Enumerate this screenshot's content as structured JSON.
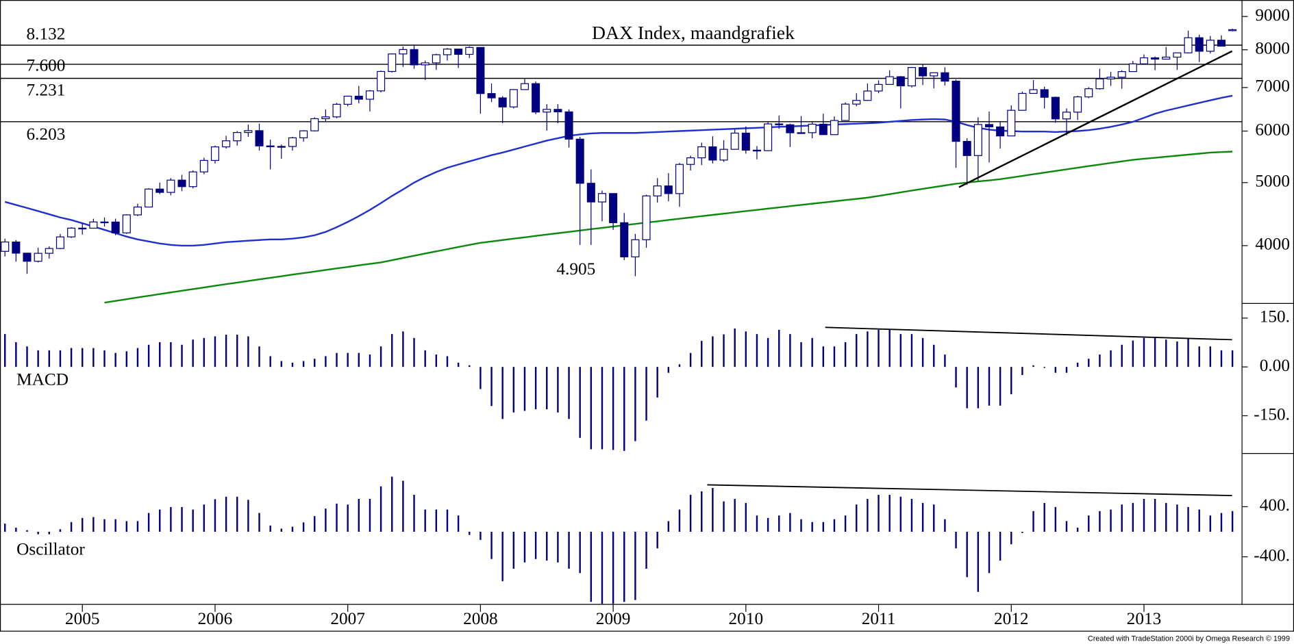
{
  "chart_data": [
    {
      "type": "candlestick",
      "title": "DAX Index, maandgrafiek",
      "categories": [
        null,
        null,
        null,
        null,
        null,
        null,
        null,
        "2005",
        null,
        null,
        null,
        null,
        null,
        null,
        null,
        null,
        null,
        null,
        null,
        "2006",
        null,
        null,
        null,
        null,
        null,
        null,
        null,
        null,
        null,
        null,
        null,
        "2007",
        null,
        null,
        null,
        null,
        null,
        null,
        null,
        null,
        null,
        null,
        null,
        "2008",
        null,
        null,
        null,
        null,
        null,
        null,
        null,
        null,
        null,
        null,
        null,
        "2009",
        null,
        null,
        null,
        null,
        null,
        null,
        null,
        null,
        null,
        null,
        null,
        "2010",
        null,
        null,
        null,
        null,
        null,
        null,
        null,
        null,
        null,
        null,
        null,
        "2011",
        null,
        null,
        null,
        null,
        null,
        null,
        null,
        null,
        null,
        null,
        null,
        "2012",
        null,
        null,
        null,
        null,
        null,
        null,
        null,
        null,
        null,
        null,
        null,
        "2013",
        null,
        null,
        null,
        null,
        null,
        null,
        null,
        null
      ],
      "open": [
        3920,
        4052,
        3895,
        3785,
        3893,
        3960,
        4126,
        4256,
        4255,
        4350,
        4349,
        4185,
        4460,
        4586,
        4887,
        4830,
        5044,
        4929,
        5193,
        5408,
        5674,
        5797,
        5970,
        6009,
        5693,
        5683,
        5682,
        5859,
        6005,
        6269,
        6309,
        6597,
        6789,
        6716,
        6917,
        7409,
        7883,
        8007,
        7584,
        7638,
        7862,
        8020,
        7871,
        8067,
        6852,
        6748,
        6535,
        6949,
        7097,
        6418,
        6479,
        6422,
        5831,
        4988,
        4669,
        4810,
        4338,
        3844,
        4085,
        4770,
        4941,
        4809,
        5332,
        5458,
        5675,
        5415,
        5625,
        5957,
        5608,
        5598,
        6154,
        6136,
        5964,
        5966,
        6148,
        5925,
        6229,
        6601,
        6688,
        6914,
        7077,
        7273,
        7041,
        7514,
        7294,
        7376,
        7159,
        5785,
        5502,
        6141,
        6089,
        5898,
        6458,
        6856,
        6947,
        6762,
        6264,
        6416,
        6772,
        6970,
        7216,
        7260,
        7406,
        7612,
        7776,
        7741,
        7795,
        7914,
        8349,
        7959,
        8276,
        8560
      ],
      "high": [
        4100,
        4080,
        3900,
        3970,
        3990,
        4170,
        4270,
        4330,
        4400,
        4420,
        4400,
        4470,
        4640,
        4900,
        5000,
        5080,
        5140,
        5220,
        5460,
        5700,
        5900,
        6000,
        6140,
        6160,
        5820,
        5720,
        5880,
        6020,
        6300,
        6480,
        6630,
        6800,
        7040,
        6940,
        7430,
        7900,
        8090,
        8150,
        7700,
        7890,
        8050,
        8030,
        8100,
        8070,
        7100,
        6790,
        6960,
        7230,
        7150,
        6600,
        6600,
        6480,
        5880,
        5240,
        4860,
        4810,
        4490,
        4170,
        4790,
        5080,
        5170,
        5360,
        5500,
        5760,
        5890,
        5810,
        6030,
        6100,
        5690,
        6190,
        6340,
        6160,
        6330,
        6200,
        6380,
        6320,
        6640,
        6860,
        7100,
        7180,
        7440,
        7290,
        7530,
        7600,
        7360,
        7520,
        7200,
        5850,
        6300,
        6430,
        6210,
        6570,
        6900,
        7190,
        7020,
        6780,
        6500,
        6800,
        7010,
        7480,
        7400,
        7440,
        7690,
        7870,
        7810,
        8080,
        7920,
        8560,
        8440,
        8400,
        8420,
        8620
      ],
      "low": [
        3850,
        3780,
        3620,
        3770,
        3820,
        3950,
        4110,
        4160,
        4250,
        4280,
        4150,
        4170,
        4440,
        4580,
        4800,
        4780,
        4850,
        4900,
        5150,
        5350,
        5640,
        5700,
        5880,
        5600,
        5240,
        5440,
        5600,
        5780,
        5990,
        6200,
        6280,
        6550,
        6620,
        6430,
        6880,
        7380,
        7530,
        7480,
        7190,
        7450,
        7700,
        7500,
        7770,
        6380,
        6650,
        6170,
        6500,
        6950,
        6370,
        6010,
        6170,
        5660,
        4010,
        4010,
        4360,
        4230,
        3800,
        3590,
        3970,
        4660,
        4680,
        4590,
        5220,
        5320,
        5350,
        5380,
        5620,
        5540,
        5430,
        5590,
        6050,
        5670,
        5960,
        5850,
        5920,
        5920,
        6220,
        6550,
        6680,
        6860,
        7070,
        6500,
        7000,
        7060,
        6980,
        7050,
        5270,
        4960,
        5030,
        5370,
        5640,
        5900,
        6450,
        6850,
        6500,
        6180,
        5910,
        6240,
        6740,
        6950,
        7040,
        6970,
        7400,
        7600,
        7440,
        7730,
        7450,
        7900,
        7660,
        7900,
        8100,
        8540
      ],
      "close": [
        4052,
        3895,
        3785,
        3893,
        3960,
        4126,
        4256,
        4255,
        4350,
        4349,
        4185,
        4460,
        4586,
        4887,
        4830,
        5044,
        4929,
        5193,
        5408,
        5674,
        5797,
        5970,
        6009,
        5693,
        5683,
        5682,
        5859,
        6005,
        6269,
        6309,
        6597,
        6789,
        6716,
        6917,
        7409,
        7883,
        8007,
        7584,
        7638,
        7862,
        8020,
        7871,
        8067,
        6852,
        6748,
        6535,
        6949,
        7097,
        6418,
        6479,
        6422,
        5831,
        4988,
        4669,
        4810,
        4338,
        3844,
        4085,
        4770,
        4941,
        4809,
        5332,
        5458,
        5675,
        5415,
        5625,
        5957,
        5608,
        5598,
        6154,
        6136,
        5964,
        5966,
        6148,
        5925,
        6229,
        6601,
        6688,
        6914,
        7077,
        7273,
        7041,
        7514,
        7294,
        7376,
        7159,
        5785,
        5502,
        6141,
        6089,
        5898,
        6458,
        6856,
        6947,
        6762,
        6264,
        6416,
        6772,
        6970,
        7216,
        7260,
        7406,
        7612,
        7776,
        7741,
        7795,
        7914,
        8349,
        7959,
        8276,
        8103,
        8590
      ],
      "up_color": "#ffffff",
      "down_color": "#000080",
      "lines": [
        {
          "color": "#1f2fd0",
          "values": [
            4670,
            4620,
            4570,
            4520,
            4470,
            4420,
            4380,
            4330,
            4280,
            4230,
            4180,
            4130,
            4090,
            4060,
            4030,
            4010,
            4000,
            4000,
            4010,
            4030,
            4050,
            4060,
            4070,
            4080,
            4090,
            4090,
            4100,
            4120,
            4150,
            4200,
            4270,
            4350,
            4440,
            4540,
            4650,
            4770,
            4880,
            5000,
            5100,
            5190,
            5270,
            5330,
            5390,
            5450,
            5510,
            5560,
            5620,
            5680,
            5740,
            5800,
            5850,
            5900,
            5930,
            5950,
            5960,
            5960,
            5960,
            5960,
            5970,
            5980,
            5990,
            6000,
            6010,
            6020,
            6030,
            6040,
            6050,
            6060,
            6070,
            6080,
            6090,
            6100,
            6110,
            6120,
            6130,
            6140,
            6150,
            6160,
            6170,
            6180,
            6200,
            6220,
            6240,
            6250,
            6260,
            6250,
            6200,
            6130,
            6070,
            6030,
            6010,
            6000,
            5990,
            5990,
            5990,
            5980,
            5990,
            6000,
            6020,
            6050,
            6090,
            6140,
            6200,
            6290,
            6380,
            6450,
            6510,
            6570,
            6630,
            6690,
            6750,
            6800
          ]
        },
        {
          "color": "#0a8a0a",
          "values": [
            null,
            null,
            null,
            null,
            null,
            null,
            null,
            null,
            null,
            3270,
            3290,
            3310,
            3330,
            3350,
            3370,
            3390,
            3410,
            3430,
            3450,
            3470,
            3490,
            3510,
            3530,
            3550,
            3570,
            3590,
            3610,
            3630,
            3650,
            3670,
            3690,
            3710,
            3730,
            3750,
            3770,
            3800,
            3830,
            3860,
            3890,
            3920,
            3950,
            3980,
            4010,
            4040,
            4060,
            4080,
            4100,
            4120,
            4140,
            4160,
            4180,
            4200,
            4220,
            4240,
            4260,
            4280,
            4300,
            4320,
            4340,
            4360,
            4380,
            4400,
            4420,
            4440,
            4460,
            4480,
            4500,
            4520,
            4540,
            4560,
            4580,
            4600,
            4620,
            4640,
            4660,
            4680,
            4700,
            4720,
            4740,
            4770,
            4800,
            4830,
            4860,
            4890,
            4920,
            4950,
            4980,
            5000,
            5020,
            5040,
            5060,
            5090,
            5120,
            5150,
            5180,
            5210,
            5240,
            5270,
            5300,
            5330,
            5360,
            5390,
            5420,
            5440,
            5460,
            5480,
            5500,
            5520,
            5540,
            5560,
            5570,
            5580
          ]
        }
      ],
      "levels": [
        {
          "value": 8132,
          "label": "8.132"
        },
        {
          "value": 7600,
          "label": "7.600"
        },
        {
          "value": 7231,
          "label": "7.231"
        },
        {
          "value": 6203,
          "label": "6.203"
        }
      ],
      "annotations": [
        "4.905"
      ],
      "log_scale": true,
      "ylim": [
        3260,
        9540
      ],
      "yticks": [
        4000,
        5000,
        6000,
        7000,
        8000,
        9000
      ],
      "footer": "Created with TradeStation 2000i by Omega Research © 1999"
    },
    {
      "type": "bar",
      "label": "MACD",
      "color": "#000080",
      "values": [
        101,
        76,
        63,
        51,
        51,
        51,
        58,
        58,
        58,
        51,
        43,
        48,
        58,
        68,
        76,
        76,
        68,
        84,
        89,
        94,
        99,
        99,
        94,
        63,
        33,
        18,
        13,
        18,
        25,
        33,
        43,
        43,
        43,
        38,
        63,
        101,
        109,
        89,
        51,
        38,
        33,
        13,
        5,
        -68,
        -120,
        -160,
        -140,
        -135,
        -130,
        -130,
        -140,
        -160,
        -218,
        -253,
        -253,
        -255,
        -258,
        -228,
        -165,
        -94,
        -18,
        8,
        43,
        80,
        94,
        100,
        118,
        109,
        101,
        89,
        114,
        101,
        76,
        89,
        63,
        63,
        76,
        101,
        109,
        114,
        114,
        101,
        101,
        89,
        68,
        38,
        -63,
        -127,
        -127,
        -119,
        -119,
        -84,
        -25,
        5,
        -3,
        -18,
        -18,
        13,
        25,
        38,
        51,
        68,
        81,
        89,
        89,
        84,
        78,
        89,
        63,
        63,
        51,
        51
      ],
      "ylim": [
        -266,
        195
      ],
      "yticks": [
        {
          "value": 150,
          "label": "150."
        },
        {
          "value": 0,
          "label": "0.00"
        },
        {
          "value": -150,
          "label": "-150."
        }
      ]
    },
    {
      "type": "bar",
      "label": "Oscillator",
      "color": "#000080",
      "values": [
        130,
        65,
        25,
        -40,
        -40,
        40,
        155,
        220,
        235,
        200,
        200,
        170,
        170,
        300,
        355,
        395,
        395,
        355,
        435,
        520,
        560,
        560,
        510,
        300,
        100,
        50,
        80,
        150,
        250,
        370,
        450,
        435,
        525,
        525,
        725,
        880,
        815,
        590,
        355,
        355,
        355,
        260,
        -50,
        -130,
        -435,
        -790,
        -590,
        -490,
        -435,
        -460,
        -490,
        -590,
        -660,
        -1120,
        -1150,
        -1150,
        -1120,
        -1090,
        -590,
        -265,
        170,
        355,
        590,
        645,
        700,
        485,
        525,
        460,
        260,
        220,
        260,
        300,
        200,
        155,
        155,
        200,
        260,
        435,
        525,
        590,
        590,
        560,
        525,
        460,
        435,
        200,
        -265,
        -725,
        -960,
        -660,
        -460,
        -200,
        -20,
        330,
        460,
        395,
        170,
        65,
        260,
        330,
        355,
        435,
        460,
        525,
        525,
        460,
        435,
        395,
        355,
        260,
        300,
        330
      ],
      "ylim": [
        -1160,
        1250
      ],
      "yticks": [
        {
          "value": 400,
          "label": "400."
        },
        {
          "value": -400,
          "label": "-400."
        }
      ]
    }
  ]
}
